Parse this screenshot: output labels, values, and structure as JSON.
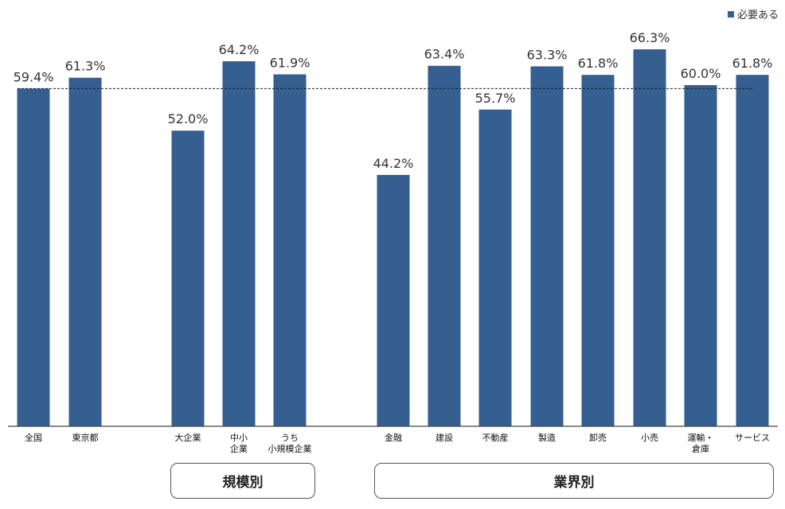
{
  "legend": {
    "label": "必要ある",
    "color": "#355E91"
  },
  "groups": {
    "size_label": "規模別",
    "industry_label": "業界別"
  },
  "chart_data": {
    "type": "bar",
    "categories": [
      "全国",
      "東京都",
      "大企業",
      "中小企業",
      "うち小規模企業",
      "金融",
      "建設",
      "不動産",
      "製造",
      "卸売",
      "小売",
      "運輸・倉庫",
      "サービス"
    ],
    "category_lines": [
      [
        "全国"
      ],
      [
        "東京都"
      ],
      [
        "大企業"
      ],
      [
        "中小",
        "企業"
      ],
      [
        "うち",
        "小規模企業"
      ],
      [
        "金融"
      ],
      [
        "建設"
      ],
      [
        "不動産"
      ],
      [
        "製造"
      ],
      [
        "卸売"
      ],
      [
        "小売"
      ],
      [
        "運輸・",
        "倉庫"
      ],
      [
        "サービス"
      ]
    ],
    "series": [
      {
        "name": "必要ある",
        "values": [
          59.4,
          61.3,
          52.0,
          64.2,
          61.9,
          44.2,
          63.4,
          55.7,
          63.3,
          61.8,
          66.3,
          60.0,
          61.8
        ],
        "labels": [
          "59.4%",
          "61.3%",
          "52.0%",
          "64.2%",
          "61.9%",
          "44.2%",
          "63.4%",
          "55.7%",
          "63.3%",
          "61.8%",
          "66.3%",
          "60.0%",
          "61.8%"
        ]
      }
    ],
    "reference_line": {
      "value": 59.4,
      "style": "dashed"
    },
    "ylim": [
      0,
      75
    ],
    "grid": false,
    "legend_position": "top-right",
    "bar_color": "#355E91"
  }
}
